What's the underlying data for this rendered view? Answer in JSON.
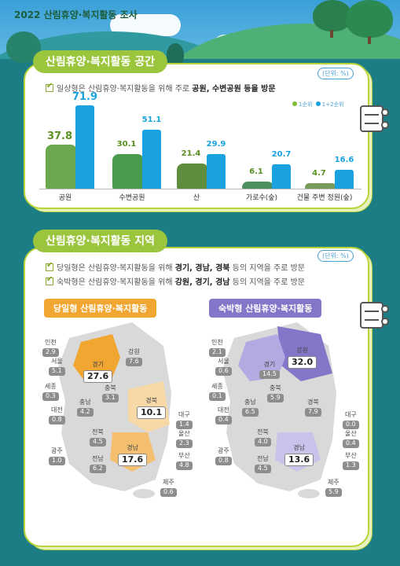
{
  "header": {
    "year": "2022",
    "title": "산림휴양·복지활동 조사"
  },
  "section1": {
    "title": "산림휴양·복지활동 공간",
    "unit": "(단위: %)",
    "statement_prefix": "일상형은 산림휴양·복지활동을 위해 주로 ",
    "statement_bold": "공원, 수변공원 등을 방문",
    "legend": [
      "1순위",
      "1+2순위"
    ]
  },
  "colors": {
    "rank1": "#7dbb35",
    "rank12": "#1aa2e0",
    "accent": "#9bc53d",
    "orange": "#f0a630",
    "purple": "#8575c8"
  },
  "chart_data": {
    "type": "bar",
    "categories": [
      "공원",
      "수변공원",
      "산",
      "가로수(숲)",
      "건물 주변 정원(숲)"
    ],
    "series": [
      {
        "name": "1순위",
        "values": [
          37.8,
          30.1,
          21.4,
          6.1,
          4.7
        ]
      },
      {
        "name": "1+2순위",
        "values": [
          71.9,
          51.1,
          29.9,
          20.7,
          16.6
        ]
      }
    ],
    "value_labels": {
      "1순위": [
        "37.8",
        "30.1",
        "21.4",
        "6.1",
        "4.7"
      ],
      "1+2순위": [
        "71.9",
        "51.1",
        "29.9",
        "20.7",
        "16.6"
      ]
    },
    "title": "",
    "xlabel": "",
    "ylabel": "",
    "ylim": [
      0,
      80
    ]
  },
  "section2": {
    "title": "산림휴양·복지활동 지역",
    "unit": "(단위: %)",
    "line1_prefix": "당일형은 산림휴양·복지활동을 위해 ",
    "line1_bold": "경기, 경남, 경북",
    "line1_suffix": " 등의 지역을 주로 방문",
    "line2_prefix": "숙박형은 산림휴양·복지활동을 위해 ",
    "line2_bold": "강원, 경기, 경남",
    "line2_suffix": " 등의 지역을 주로 방문"
  },
  "maps": {
    "day": {
      "title": "당일형 산림휴양·복지활동",
      "regions": {
        "incheon": {
          "name": "인천",
          "value": "2.9"
        },
        "seoul": {
          "name": "서울",
          "value": "5.1"
        },
        "gyeonggi": {
          "name": "경기",
          "value": "27.6"
        },
        "gangwon": {
          "name": "강원",
          "value": "7.6"
        },
        "sejong": {
          "name": "세종",
          "value": "0.3"
        },
        "chungbuk": {
          "name": "충북",
          "value": "3.1"
        },
        "chungnam": {
          "name": "충남",
          "value": "4.2"
        },
        "daejeon": {
          "name": "대전",
          "value": "0.8"
        },
        "gyeongbuk": {
          "name": "경북",
          "value": "10.1"
        },
        "daegu": {
          "name": "대구",
          "value": "1.4"
        },
        "jeonbuk": {
          "name": "전북",
          "value": "4.5"
        },
        "ulsan": {
          "name": "울산",
          "value": "2.3"
        },
        "gwangju": {
          "name": "광주",
          "value": "1.0"
        },
        "gyeongnam": {
          "name": "경남",
          "value": "17.6"
        },
        "jeonnam": {
          "name": "전남",
          "value": "6.2"
        },
        "busan": {
          "name": "부산",
          "value": "4.8"
        },
        "jeju": {
          "name": "제주",
          "value": "0.6"
        }
      }
    },
    "stay": {
      "title": "숙박형 산림휴양·복지활동",
      "regions": {
        "incheon": {
          "name": "인천",
          "value": "2.1"
        },
        "seoul": {
          "name": "서울",
          "value": "0.6"
        },
        "gyeonggi": {
          "name": "경기",
          "value": "14.5"
        },
        "gangwon": {
          "name": "강원",
          "value": "32.0"
        },
        "sejong": {
          "name": "세종",
          "value": "0.1"
        },
        "chungbuk": {
          "name": "충북",
          "value": "5.9"
        },
        "chungnam": {
          "name": "충남",
          "value": "6.5"
        },
        "daejeon": {
          "name": "대전",
          "value": "0.4"
        },
        "gyeongbuk": {
          "name": "경북",
          "value": "7.9"
        },
        "daegu": {
          "name": "대구",
          "value": "0.0"
        },
        "jeonbuk": {
          "name": "전북",
          "value": "4.0"
        },
        "ulsan": {
          "name": "울산",
          "value": "0.4"
        },
        "gwangju": {
          "name": "광주",
          "value": "0.8"
        },
        "gyeongnam": {
          "name": "경남",
          "value": "13.6"
        },
        "jeonnam": {
          "name": "전남",
          "value": "4.5"
        },
        "busan": {
          "name": "부산",
          "value": "1.3"
        },
        "jeju": {
          "name": "제주",
          "value": "5.9"
        }
      }
    }
  }
}
